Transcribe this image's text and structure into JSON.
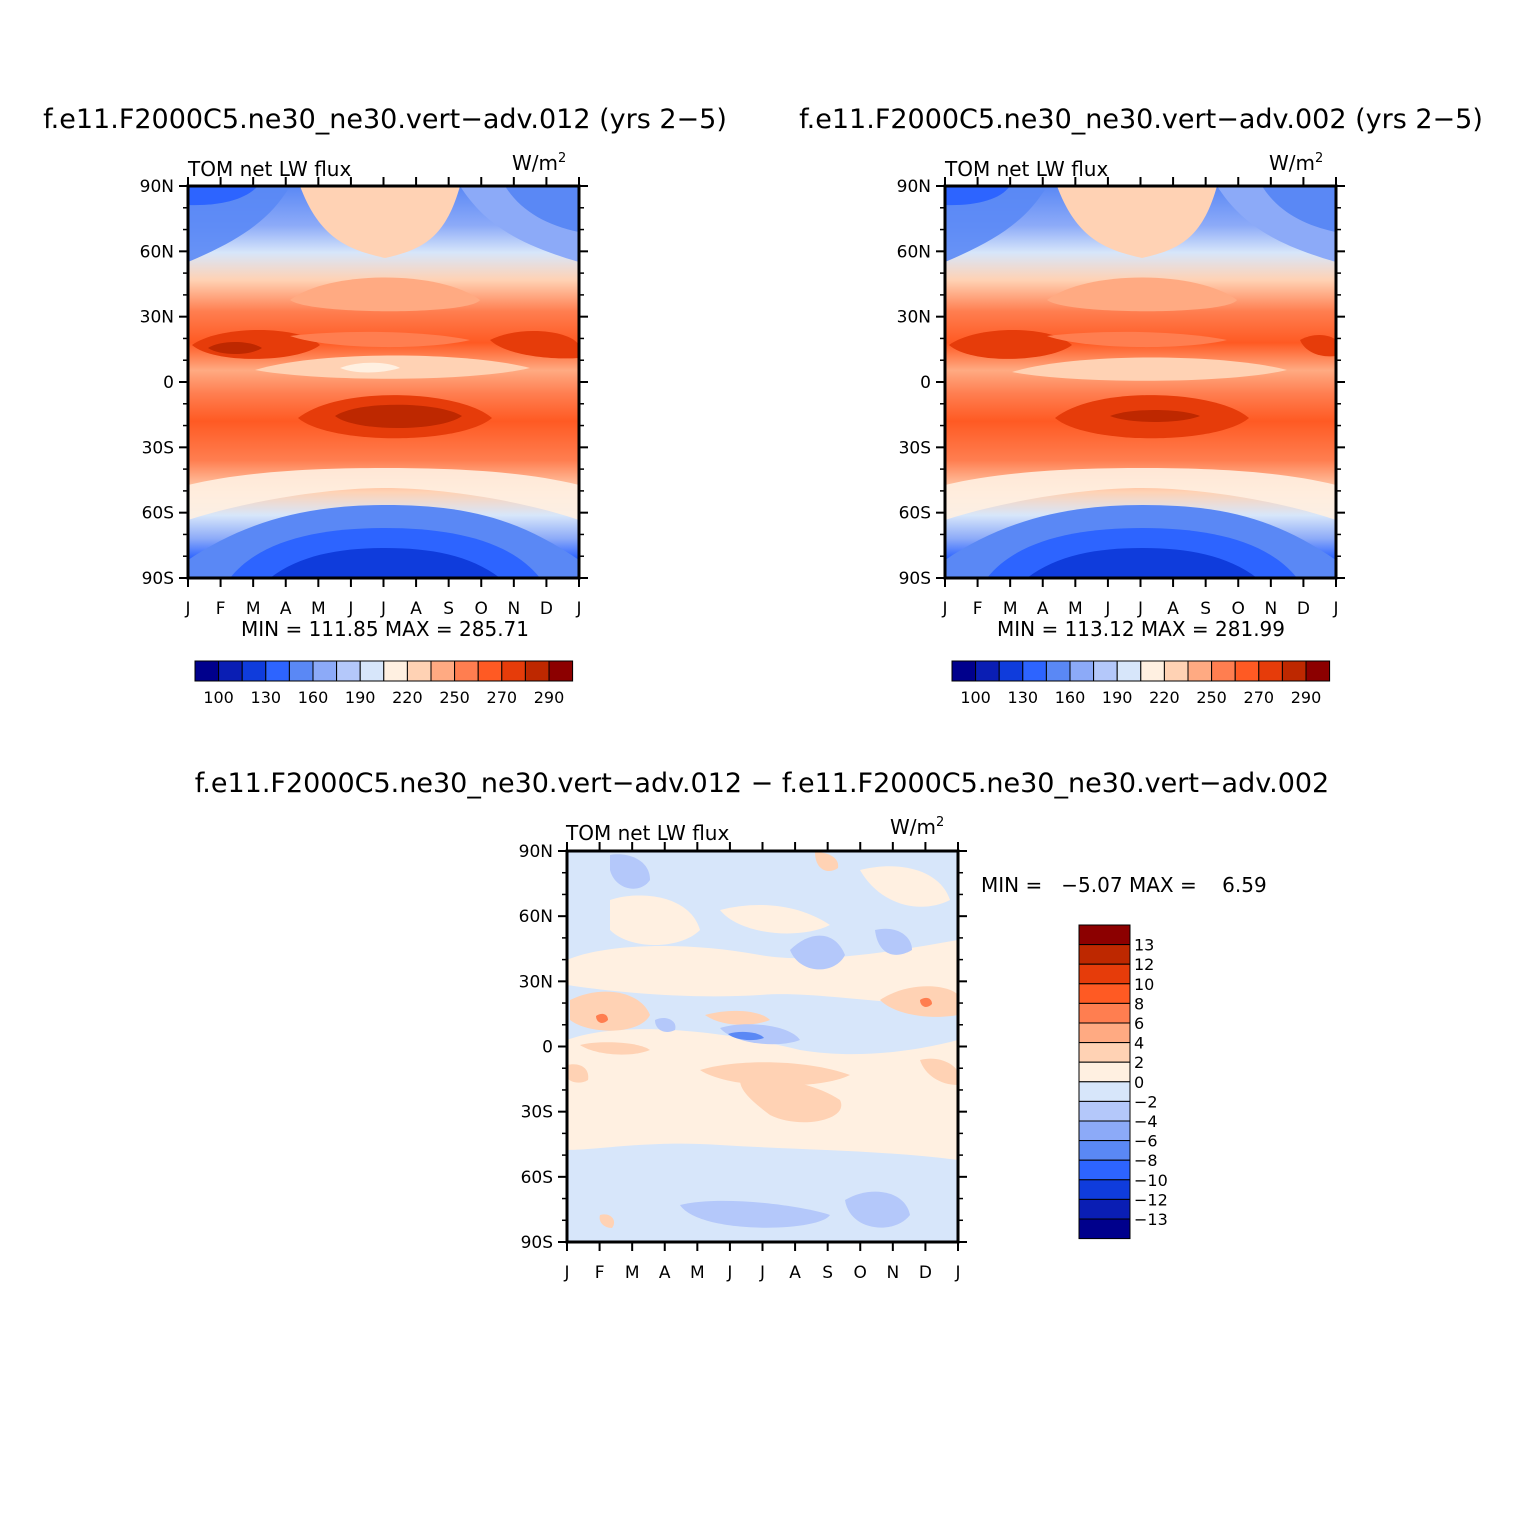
{
  "chart_data": [
    {
      "type": "heatmap",
      "title": "f.e11.F2000C5.ne30_ne30.vert−adv.012 (yrs 2−5)",
      "left_string": "TOM net LW flux",
      "units": "W/m",
      "units_exp": "2",
      "x_ticks": [
        "J",
        "F",
        "M",
        "A",
        "M",
        "J",
        "J",
        "A",
        "S",
        "O",
        "N",
        "D",
        "J"
      ],
      "y_ticks": [
        "90N",
        "60N",
        "30N",
        "0",
        "30S",
        "60S",
        "90S"
      ],
      "min_max_text": "MIN = 111.85 MAX = 285.71",
      "min": 111.85,
      "max": 285.71,
      "colorbar": {
        "orientation": "horizontal",
        "colors": [
          "#00008c",
          "#0a1eb4",
          "#0f3cdc",
          "#2d64ff",
          "#5a88f5",
          "#8caaf8",
          "#b4c8fa",
          "#d7e6fa",
          "#fff0e1",
          "#ffd2b4",
          "#ffaa82",
          "#ff7e50",
          "#ff5a23",
          "#e63c0a",
          "#be2800",
          "#8c0000"
        ],
        "labels": [
          "100",
          "130",
          "160",
          "190",
          "220",
          "250",
          "270",
          "290"
        ]
      }
    },
    {
      "type": "heatmap",
      "title": "f.e11.F2000C5.ne30_ne30.vert−adv.002 (yrs 2−5)",
      "left_string": "TOM net LW flux",
      "units": "W/m",
      "units_exp": "2",
      "x_ticks": [
        "J",
        "F",
        "M",
        "A",
        "M",
        "J",
        "J",
        "A",
        "S",
        "O",
        "N",
        "D",
        "J"
      ],
      "y_ticks": [
        "90N",
        "60N",
        "30N",
        "0",
        "30S",
        "60S",
        "90S"
      ],
      "min_max_text": "MIN = 113.12 MAX = 281.99",
      "min": 113.12,
      "max": 281.99,
      "colorbar": {
        "orientation": "horizontal",
        "colors": [
          "#00008c",
          "#0a1eb4",
          "#0f3cdc",
          "#2d64ff",
          "#5a88f5",
          "#8caaf8",
          "#b4c8fa",
          "#d7e6fa",
          "#fff0e1",
          "#ffd2b4",
          "#ffaa82",
          "#ff7e50",
          "#ff5a23",
          "#e63c0a",
          "#be2800",
          "#8c0000"
        ],
        "labels": [
          "100",
          "130",
          "160",
          "190",
          "220",
          "250",
          "270",
          "290"
        ]
      }
    },
    {
      "type": "heatmap",
      "title": "f.e11.F2000C5.ne30_ne30.vert−adv.012 − f.e11.F2000C5.ne30_ne30.vert−adv.002",
      "left_string": "TOM net LW flux",
      "units": "W/m",
      "units_exp": "2",
      "x_ticks": [
        "J",
        "F",
        "M",
        "A",
        "M",
        "J",
        "J",
        "A",
        "S",
        "O",
        "N",
        "D",
        "J"
      ],
      "y_ticks": [
        "90N",
        "60N",
        "30N",
        "0",
        "30S",
        "60S",
        "90S"
      ],
      "min_max_text": "MIN =   −5.07 MAX =    6.59",
      "min": -5.07,
      "max": 6.59,
      "colorbar": {
        "orientation": "vertical",
        "colors": [
          "#8c0000",
          "#be2800",
          "#e63c0a",
          "#ff5a23",
          "#ff7e50",
          "#ffaa82",
          "#ffd2b4",
          "#fff0e1",
          "#d7e6fa",
          "#b4c8fa",
          "#8caaf8",
          "#5a88f5",
          "#2d64ff",
          "#0f3cdc",
          "#0a1eb4",
          "#00008c"
        ],
        "labels": [
          "13",
          "12",
          "10",
          "8",
          "6",
          "4",
          "2",
          "0",
          "−2",
          "−4",
          "−6",
          "−8",
          "−10",
          "−12",
          "−13"
        ]
      }
    }
  ]
}
